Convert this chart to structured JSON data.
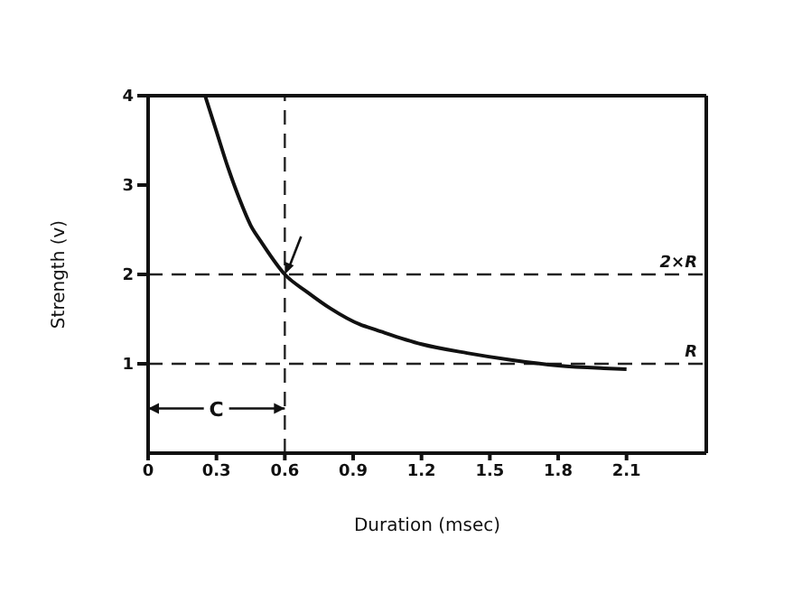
{
  "chart_data": {
    "type": "line",
    "xlabel": "Duration (msec)",
    "ylabel": "Strength (v)",
    "x": [
      0.25,
      0.3,
      0.35,
      0.4,
      0.45,
      0.5,
      0.6,
      0.7,
      0.8,
      0.93,
      1.0,
      1.2,
      1.4,
      1.6,
      1.8,
      2.0,
      2.1
    ],
    "series": [
      {
        "color": "#111111",
        "values": [
          4,
          3.6,
          3.2,
          2.85,
          2.55,
          2.35,
          2.0,
          1.8,
          1.62,
          1.44,
          1.38,
          1.22,
          1.12,
          1.04,
          0.98,
          0.95,
          0.94
        ]
      }
    ],
    "xlim": [
      0,
      2.45
    ],
    "xticks": [
      0,
      0.3,
      0.6,
      0.9,
      1.2,
      1.5,
      1.8,
      2.1
    ],
    "ylim": [
      0,
      4
    ],
    "yticks": [
      1,
      2,
      3,
      4
    ],
    "ref_lines": [
      {
        "axis": "y",
        "value": 2,
        "label": "2×R",
        "line_style": "dashed"
      },
      {
        "axis": "y",
        "value": 1,
        "label": "R",
        "line_style": "dashed"
      },
      {
        "axis": "x",
        "value": 0.6,
        "label": null,
        "line_style": "dashed"
      }
    ],
    "annotations": [
      {
        "text": "C",
        "x": 0.3,
        "y": 0.5
      }
    ],
    "grid": false,
    "legend": false,
    "line_style": "solid"
  }
}
